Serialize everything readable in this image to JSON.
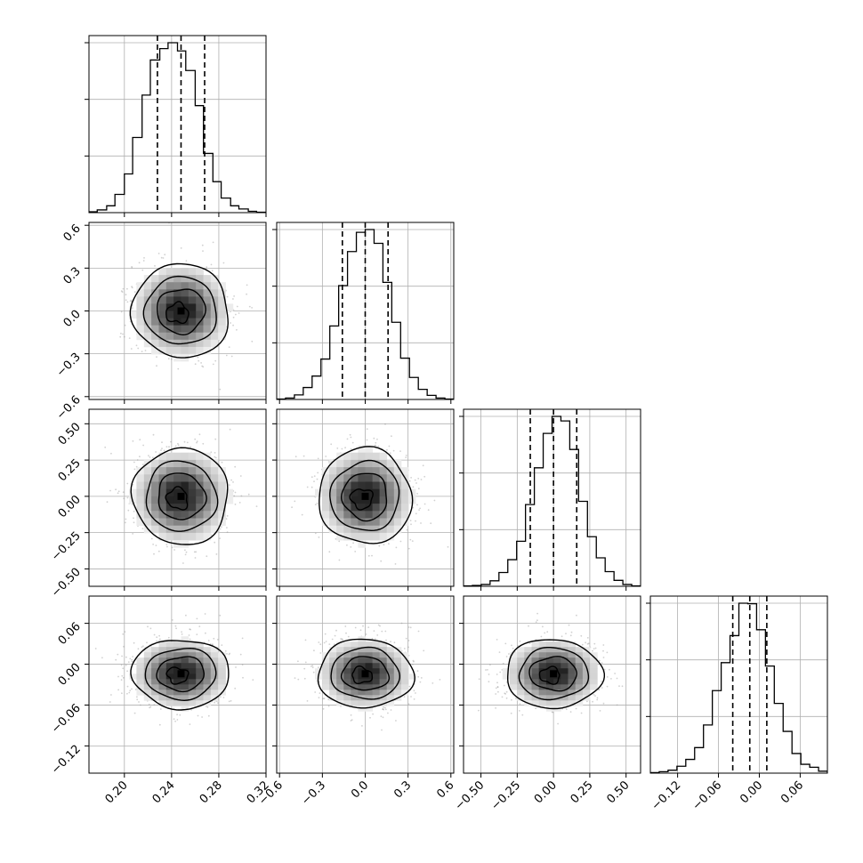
{
  "chart_data": {
    "type": "corner",
    "n_params": 4,
    "grid": true,
    "params": [
      {
        "range": [
          0.17,
          0.32
        ],
        "ticks": [
          0.2,
          0.24,
          0.28,
          0.32
        ],
        "tick_labels": [
          "0.20",
          "0.24",
          "0.28",
          "0.32"
        ],
        "quantiles": [
          0.228,
          0.248,
          0.268
        ],
        "mean": 0.248,
        "sigma": 0.02
      },
      {
        "range": [
          -0.62,
          0.62
        ],
        "ticks": [
          -0.6,
          -0.3,
          0.0,
          0.3,
          0.6
        ],
        "tick_labels": [
          "−0.6",
          "−0.3",
          "0.0",
          "0.3",
          "0.6"
        ],
        "quantiles": [
          -0.16,
          0.0,
          0.16
        ],
        "mean": 0.0,
        "sigma": 0.16
      },
      {
        "range": [
          -0.62,
          0.6
        ],
        "ticks": [
          -0.5,
          -0.25,
          0.0,
          0.25,
          0.5
        ],
        "tick_labels": [
          "−0.50",
          "−0.25",
          "0.00",
          "0.25",
          "0.50"
        ],
        "quantiles": [
          -0.16,
          0.0,
          0.16
        ],
        "mean": 0.0,
        "sigma": 0.16
      },
      {
        "range": [
          -0.16,
          0.1
        ],
        "ticks": [
          -0.12,
          -0.06,
          0.0,
          0.06
        ],
        "tick_labels": [
          "−0.12",
          "−0.06",
          "0.00",
          "0.06"
        ],
        "quantiles": [
          -0.039,
          -0.014,
          0.011
        ],
        "mean": -0.014,
        "sigma": 0.025
      }
    ],
    "histograms": [
      {
        "bins": [
          0.17,
          0.177,
          0.185,
          0.192,
          0.2,
          0.207,
          0.215,
          0.222,
          0.23,
          0.237,
          0.245,
          0.252,
          0.26,
          0.267,
          0.275,
          0.282,
          0.29,
          0.297,
          0.305,
          0.312,
          0.32
        ],
        "counts": [
          2,
          6,
          15,
          40,
          85,
          165,
          258,
          335,
          360,
          373,
          355,
          312,
          235,
          130,
          68,
          32,
          15,
          8,
          3,
          1
        ]
      },
      {
        "bins": [
          -0.62,
          -0.558,
          -0.496,
          -0.434,
          -0.372,
          -0.31,
          -0.248,
          -0.186,
          -0.124,
          -0.062,
          0.0,
          0.062,
          0.124,
          0.186,
          0.248,
          0.31,
          0.372,
          0.434,
          0.496,
          0.558,
          0.62
        ],
        "counts": [
          1,
          3,
          10,
          26,
          51,
          88,
          160,
          248,
          322,
          364,
          370,
          340,
          255,
          168,
          90,
          48,
          22,
          9,
          3,
          1
        ]
      },
      {
        "bins": [
          -0.62,
          -0.559,
          -0.498,
          -0.437,
          -0.376,
          -0.315,
          -0.254,
          -0.193,
          -0.132,
          -0.071,
          -0.01,
          0.051,
          0.112,
          0.173,
          0.234,
          0.295,
          0.356,
          0.417,
          0.478,
          0.539,
          0.6
        ],
        "counts": [
          1,
          2,
          4,
          12,
          30,
          58,
          98,
          178,
          258,
          333,
          370,
          360,
          298,
          185,
          108,
          62,
          32,
          13,
          4,
          1
        ]
      },
      {
        "bins": [
          -0.16,
          -0.147,
          -0.134,
          -0.121,
          -0.108,
          -0.095,
          -0.082,
          -0.069,
          -0.056,
          -0.043,
          -0.03,
          -0.017,
          -0.004,
          0.009,
          0.022,
          0.035,
          0.048,
          0.061,
          0.074,
          0.087,
          0.1
        ],
        "counts": [
          1,
          3,
          6,
          14,
          28,
          52,
          98,
          168,
          225,
          280,
          346,
          345,
          292,
          218,
          142,
          85,
          40,
          18,
          12,
          4
        ]
      }
    ]
  }
}
